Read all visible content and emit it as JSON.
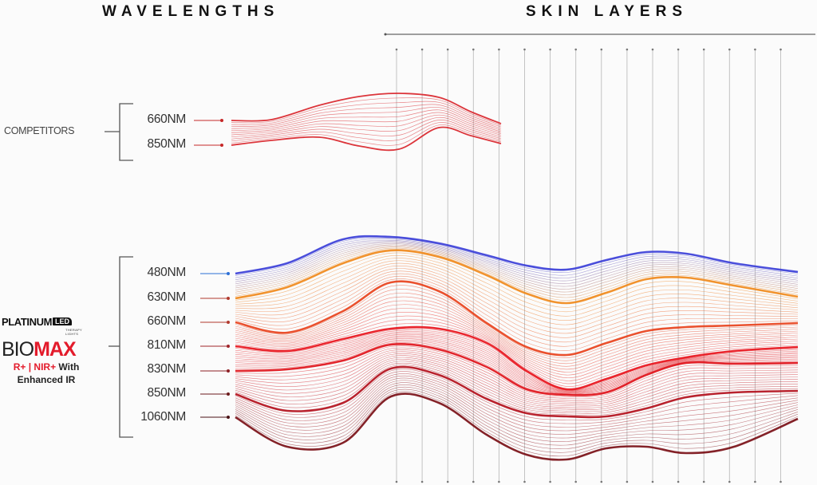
{
  "headings": {
    "wavelengths": "WAVELENGTHS",
    "skin_layers": "SKIN LAYERS"
  },
  "competitors": {
    "label": "COMPETITORS",
    "wavelengths": [
      {
        "label": "660NM",
        "color": "#c62828"
      },
      {
        "label": "850NM",
        "color": "#c62828"
      }
    ]
  },
  "brand": {
    "name": "PLATINUM",
    "led_badge": "LED",
    "led_sub": "THERAPY LIGHTS",
    "product_prefix": "BIO",
    "product_suffix": "MAX",
    "tagline_red": "R+ | NIR+",
    "tagline_black": " With",
    "tagline_line2": "Enhanced IR",
    "accent_color": "#e31b2b"
  },
  "biomax": {
    "wavelengths": [
      {
        "label": "480NM",
        "color": "#3b3fd8",
        "marker_color": "#2b6fd6"
      },
      {
        "label": "630NM",
        "color": "#f08a1c",
        "marker_color": "#b13a2e"
      },
      {
        "label": "660NM",
        "color": "#e8421c",
        "marker_color": "#b13a2e"
      },
      {
        "label": "810NM",
        "color": "#e8141c",
        "marker_color": "#a0242a"
      },
      {
        "label": "830NM",
        "color": "#e0121a",
        "marker_color": "#8e1f24"
      },
      {
        "label": "850NM",
        "color": "#b3101c",
        "marker_color": "#6b1a1c"
      },
      {
        "label": "1060NM",
        "color": "#7a0f16",
        "marker_color": "#4a1214"
      }
    ]
  },
  "skin_layers": {
    "layer_count": 16
  }
}
